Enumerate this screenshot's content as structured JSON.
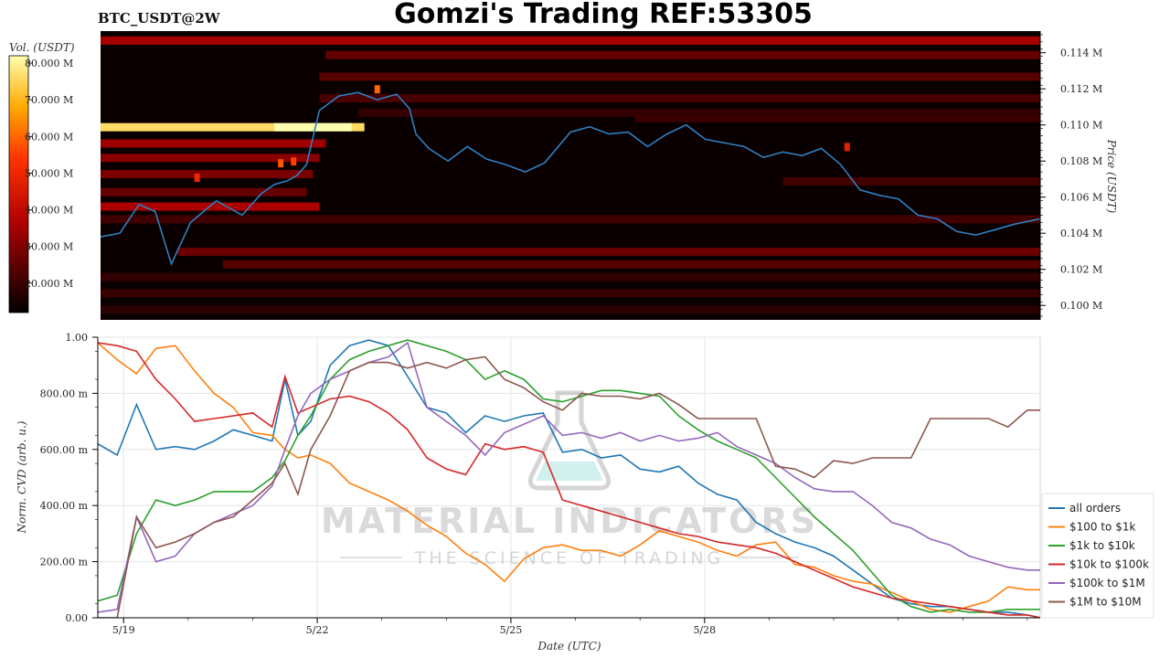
{
  "title": "Gomzi's Trading REF:53305",
  "symbol": "BTC_USDT@2W",
  "watermark": {
    "line1": "MATERIAL INDICATORS",
    "line2": "THE SCIENCE OF TRADING",
    "icon": "flask-icon"
  },
  "colors": {
    "price_line": "#2f7fc1",
    "series": [
      "#1f77b4",
      "#ff7f0e",
      "#2ca02c",
      "#d62728",
      "#9467bd",
      "#8c564b"
    ]
  },
  "chart_data": [
    {
      "type": "heatmap",
      "name": "order-book-heatmap",
      "colorbar": {
        "label": "Vol. (USDT)",
        "ticks": [
          "80.000 M",
          "70.000 M",
          "60.000 M",
          "50.000 M",
          "40.000 M",
          "30.000 M",
          "20.000 M"
        ],
        "tick_values": [
          80,
          70,
          60,
          50,
          40,
          30,
          20
        ],
        "range": [
          12,
          82
        ],
        "colormap": "hot"
      },
      "y_axis": {
        "label": "Price (USDT)",
        "side": "right",
        "ticks": [
          "0.114 M",
          "0.112 M",
          "0.110 M",
          "0.108 M",
          "0.106 M",
          "0.104 M",
          "0.102 M",
          "0.100 M"
        ],
        "tick_values": [
          114000,
          112000,
          110000,
          108000,
          106000,
          104000,
          102000,
          100000
        ],
        "ylim": [
          99200,
          115200
        ]
      },
      "x_axis": {
        "label": "Date (UTC)",
        "xlim": [
          18.6,
          33.2
        ]
      },
      "price_series": {
        "name": "BTC price",
        "x": [
          18.6,
          18.9,
          19.2,
          19.45,
          19.7,
          20.0,
          20.4,
          20.8,
          21.1,
          21.3,
          21.5,
          21.65,
          21.8,
          22.0,
          22.3,
          22.6,
          22.9,
          23.2,
          23.4,
          23.5,
          23.7,
          24.0,
          24.3,
          24.6,
          24.9,
          25.2,
          25.5,
          25.9,
          26.2,
          26.5,
          26.8,
          27.1,
          27.4,
          27.7,
          28.0,
          28.3,
          28.6,
          28.9,
          29.2,
          29.5,
          29.8,
          30.1,
          30.4,
          30.7,
          31.0,
          31.3,
          31.6,
          31.9,
          32.2,
          32.5,
          32.8,
          33.2
        ],
        "y": [
          103800,
          104000,
          105600,
          105200,
          102300,
          104600,
          105800,
          105000,
          106200,
          106700,
          106900,
          107200,
          107800,
          110800,
          111600,
          111800,
          111400,
          111700,
          110900,
          109500,
          108700,
          108000,
          108800,
          108100,
          107800,
          107400,
          107900,
          109600,
          109900,
          109500,
          109600,
          108800,
          109500,
          110000,
          109200,
          109000,
          108800,
          108200,
          108500,
          108300,
          108700,
          107800,
          106400,
          106100,
          105900,
          105000,
          104800,
          104100,
          103900,
          104200,
          104500,
          104800
        ]
      },
      "levels": [
        {
          "price": 109900,
          "from": 18.6,
          "to": 22.7,
          "vol": 76,
          "peak_from": 21.3,
          "peak_to": 22.5,
          "peak_vol": 82
        },
        {
          "price": 114700,
          "from": 18.6,
          "to": 33.2,
          "vol": 35
        },
        {
          "price": 113900,
          "from": 22.1,
          "to": 33.2,
          "vol": 26
        },
        {
          "price": 112700,
          "from": 22.0,
          "to": 33.2,
          "vol": 24
        },
        {
          "price": 111500,
          "from": 22.0,
          "to": 33.2,
          "vol": 22
        },
        {
          "price": 110700,
          "from": 22.6,
          "to": 33.2,
          "vol": 19
        },
        {
          "price": 109000,
          "from": 18.6,
          "to": 22.1,
          "vol": 34
        },
        {
          "price": 108200,
          "from": 18.6,
          "to": 22.0,
          "vol": 31
        },
        {
          "price": 107300,
          "from": 18.6,
          "to": 21.9,
          "vol": 29
        },
        {
          "price": 106300,
          "from": 18.6,
          "to": 21.8,
          "vol": 26
        },
        {
          "price": 105500,
          "from": 18.6,
          "to": 22.0,
          "vol": 36
        },
        {
          "price": 104800,
          "from": 18.6,
          "to": 33.2,
          "vol": 21
        },
        {
          "price": 103000,
          "from": 19.8,
          "to": 33.2,
          "vol": 27
        },
        {
          "price": 102300,
          "from": 20.5,
          "to": 33.2,
          "vol": 24
        },
        {
          "price": 101600,
          "from": 18.6,
          "to": 33.2,
          "vol": 19
        },
        {
          "price": 100700,
          "from": 18.6,
          "to": 33.2,
          "vol": 20
        },
        {
          "price": 99800,
          "from": 18.6,
          "to": 33.2,
          "vol": 18
        },
        {
          "price": 110400,
          "from": 26.9,
          "to": 33.2,
          "vol": 20
        },
        {
          "price": 106900,
          "from": 29.2,
          "to": 33.2,
          "vol": 21
        }
      ],
      "hotspots": [
        {
          "x": 21.4,
          "price": 107900,
          "vol": 58
        },
        {
          "x": 21.6,
          "price": 108000,
          "vol": 55
        },
        {
          "x": 22.9,
          "price": 112000,
          "vol": 60
        },
        {
          "x": 30.2,
          "price": 108800,
          "vol": 48
        },
        {
          "x": 20.1,
          "price": 107100,
          "vol": 50
        }
      ]
    },
    {
      "type": "line",
      "name": "normalized-cvd",
      "ylabel": "Norm. CVD (arb. u.)",
      "xlabel": "Date (UTC)",
      "ylim": [
        0,
        1
      ],
      "xlim": [
        18.6,
        33.2
      ],
      "x_ticks": [
        "5/19",
        "5/22",
        "5/25",
        "5/28"
      ],
      "x_tick_values": [
        19,
        22,
        25,
        28
      ],
      "y_ticks": [
        "1.00",
        "800.00 m",
        "600.00 m",
        "400.00 m",
        "200.00 m",
        "0.00"
      ],
      "y_tick_values": [
        1.0,
        0.8,
        0.6,
        0.4,
        0.2,
        0.0
      ],
      "legend_position": "bottom-right-outside",
      "x": [
        18.6,
        18.9,
        19.2,
        19.5,
        19.8,
        20.1,
        20.4,
        20.7,
        21.0,
        21.3,
        21.5,
        21.7,
        21.9,
        22.2,
        22.5,
        22.8,
        23.1,
        23.4,
        23.7,
        24.0,
        24.3,
        24.6,
        24.9,
        25.2,
        25.5,
        25.8,
        26.1,
        26.4,
        26.7,
        27.0,
        27.3,
        27.6,
        27.9,
        28.2,
        28.5,
        28.8,
        29.1,
        29.4,
        29.7,
        30.0,
        30.3,
        30.6,
        30.9,
        31.2,
        31.5,
        31.8,
        32.1,
        32.4,
        32.7,
        33.0,
        33.2
      ],
      "series": [
        {
          "name": "all orders",
          "values": [
            0.62,
            0.58,
            0.76,
            0.6,
            0.61,
            0.6,
            0.63,
            0.67,
            0.65,
            0.63,
            0.85,
            0.65,
            0.7,
            0.9,
            0.97,
            0.99,
            0.97,
            0.86,
            0.75,
            0.73,
            0.66,
            0.72,
            0.7,
            0.72,
            0.73,
            0.59,
            0.6,
            0.57,
            0.58,
            0.53,
            0.52,
            0.54,
            0.48,
            0.44,
            0.42,
            0.34,
            0.3,
            0.27,
            0.25,
            0.22,
            0.17,
            0.12,
            0.07,
            0.05,
            0.04,
            0.04,
            0.03,
            0.02,
            0.02,
            0.01,
            0.0
          ]
        },
        {
          "name": "$100 to $1k",
          "values": [
            0.98,
            0.92,
            0.87,
            0.96,
            0.97,
            0.88,
            0.8,
            0.75,
            0.66,
            0.65,
            0.6,
            0.57,
            0.58,
            0.55,
            0.48,
            0.45,
            0.42,
            0.38,
            0.33,
            0.29,
            0.23,
            0.19,
            0.13,
            0.21,
            0.25,
            0.26,
            0.24,
            0.24,
            0.22,
            0.26,
            0.31,
            0.29,
            0.27,
            0.24,
            0.22,
            0.26,
            0.27,
            0.19,
            0.18,
            0.15,
            0.13,
            0.12,
            0.09,
            0.06,
            0.03,
            0.02,
            0.04,
            0.06,
            0.11,
            0.1,
            0.1
          ]
        },
        {
          "name": "$1k to $10k",
          "values": [
            0.06,
            0.08,
            0.3,
            0.42,
            0.4,
            0.42,
            0.45,
            0.45,
            0.45,
            0.5,
            0.56,
            0.65,
            0.72,
            0.85,
            0.92,
            0.95,
            0.97,
            0.99,
            0.97,
            0.95,
            0.92,
            0.85,
            0.88,
            0.85,
            0.78,
            0.77,
            0.79,
            0.81,
            0.81,
            0.8,
            0.79,
            0.72,
            0.67,
            0.63,
            0.6,
            0.57,
            0.5,
            0.43,
            0.36,
            0.3,
            0.24,
            0.16,
            0.08,
            0.04,
            0.02,
            0.03,
            0.02,
            0.02,
            0.03,
            0.03,
            0.03
          ]
        },
        {
          "name": "$10k to $100k",
          "values": [
            0.98,
            0.97,
            0.95,
            0.85,
            0.78,
            0.7,
            0.71,
            0.72,
            0.73,
            0.68,
            0.86,
            0.73,
            0.75,
            0.78,
            0.79,
            0.77,
            0.73,
            0.67,
            0.57,
            0.53,
            0.51,
            0.62,
            0.6,
            0.61,
            0.59,
            0.42,
            0.4,
            0.38,
            0.36,
            0.34,
            0.32,
            0.3,
            0.29,
            0.27,
            0.26,
            0.25,
            0.23,
            0.2,
            0.17,
            0.14,
            0.11,
            0.09,
            0.07,
            0.06,
            0.05,
            0.04,
            0.03,
            0.02,
            0.01,
            0.01,
            0.0
          ]
        },
        {
          "name": "$100k to $1M",
          "values": [
            0.02,
            0.03,
            0.36,
            0.2,
            0.22,
            0.3,
            0.34,
            0.37,
            0.4,
            0.47,
            0.6,
            0.72,
            0.8,
            0.85,
            0.88,
            0.91,
            0.93,
            0.98,
            0.75,
            0.7,
            0.65,
            0.58,
            0.66,
            0.69,
            0.72,
            0.65,
            0.66,
            0.64,
            0.66,
            0.63,
            0.65,
            0.63,
            0.64,
            0.66,
            0.61,
            0.58,
            0.55,
            0.5,
            0.46,
            0.45,
            0.45,
            0.4,
            0.34,
            0.32,
            0.28,
            0.26,
            0.22,
            0.2,
            0.18,
            0.17,
            0.17
          ]
        },
        {
          "name": "$1M to $10M",
          "values": [
            0.0,
            0.0,
            0.36,
            0.25,
            0.27,
            0.3,
            0.34,
            0.36,
            0.42,
            0.48,
            0.55,
            0.44,
            0.6,
            0.72,
            0.88,
            0.91,
            0.91,
            0.89,
            0.91,
            0.89,
            0.92,
            0.93,
            0.85,
            0.82,
            0.77,
            0.74,
            0.8,
            0.79,
            0.79,
            0.78,
            0.8,
            0.76,
            0.71,
            0.71,
            0.71,
            0.71,
            0.54,
            0.53,
            0.5,
            0.56,
            0.55,
            0.57,
            0.57,
            0.57,
            0.71,
            0.71,
            0.71,
            0.71,
            0.68,
            0.74,
            0.74
          ]
        }
      ]
    }
  ]
}
